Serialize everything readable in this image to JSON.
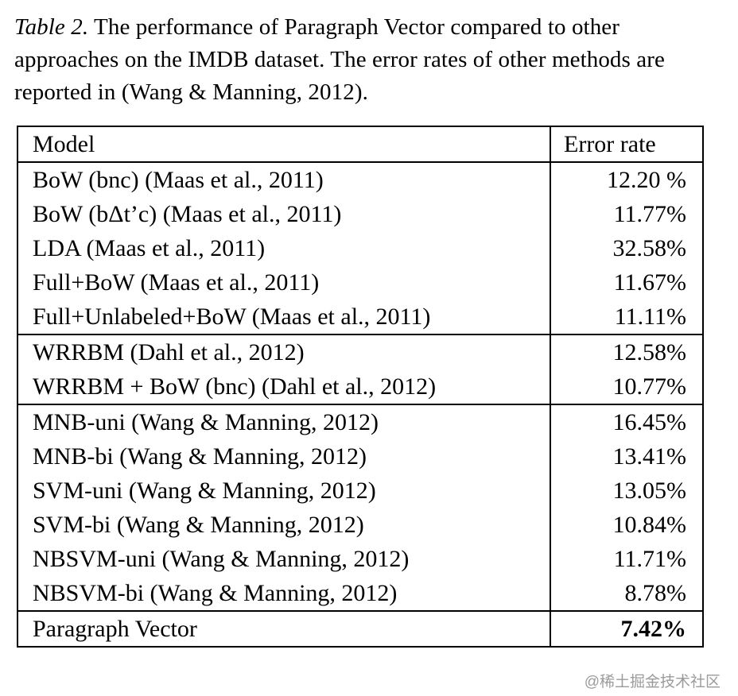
{
  "caption": {
    "label": "Table 2.",
    "text": "The performance of Paragraph Vector compared to other approaches on the IMDB dataset. The error rates of other methods are reported in (Wang & Manning, 2012)."
  },
  "table": {
    "headers": {
      "model": "Model",
      "error_rate": "Error rate"
    },
    "rows": [
      {
        "model": "BoW (bnc) (Maas et al., 2011)",
        "error": "12.20 %"
      },
      {
        "model": "BoW (bΔt’c) (Maas et al., 2011)",
        "error": "11.77%"
      },
      {
        "model": "LDA (Maas et al., 2011)",
        "error": "32.58%"
      },
      {
        "model": "Full+BoW (Maas et al., 2011)",
        "error": "11.67%"
      },
      {
        "model": "Full+Unlabeled+BoW (Maas et al., 2011)",
        "error": "11.11%"
      },
      {
        "model": "WRRBM (Dahl et al., 2012)",
        "error": "12.58%"
      },
      {
        "model": "WRRBM + BoW (bnc) (Dahl et al., 2012)",
        "error": "10.77%"
      },
      {
        "model": "MNB-uni (Wang & Manning, 2012)",
        "error": "16.45%"
      },
      {
        "model": "MNB-bi (Wang & Manning, 2012)",
        "error": "13.41%"
      },
      {
        "model": "SVM-uni (Wang & Manning, 2012)",
        "error": "13.05%"
      },
      {
        "model": "SVM-bi (Wang & Manning, 2012)",
        "error": "10.84%"
      },
      {
        "model": "NBSVM-uni (Wang & Manning, 2012)",
        "error": "11.71%"
      },
      {
        "model": "NBSVM-bi (Wang & Manning, 2012)",
        "error": "8.78%"
      },
      {
        "model": "Paragraph Vector",
        "error": "7.42%"
      }
    ]
  },
  "watermark": "@稀土掘金技术社区"
}
